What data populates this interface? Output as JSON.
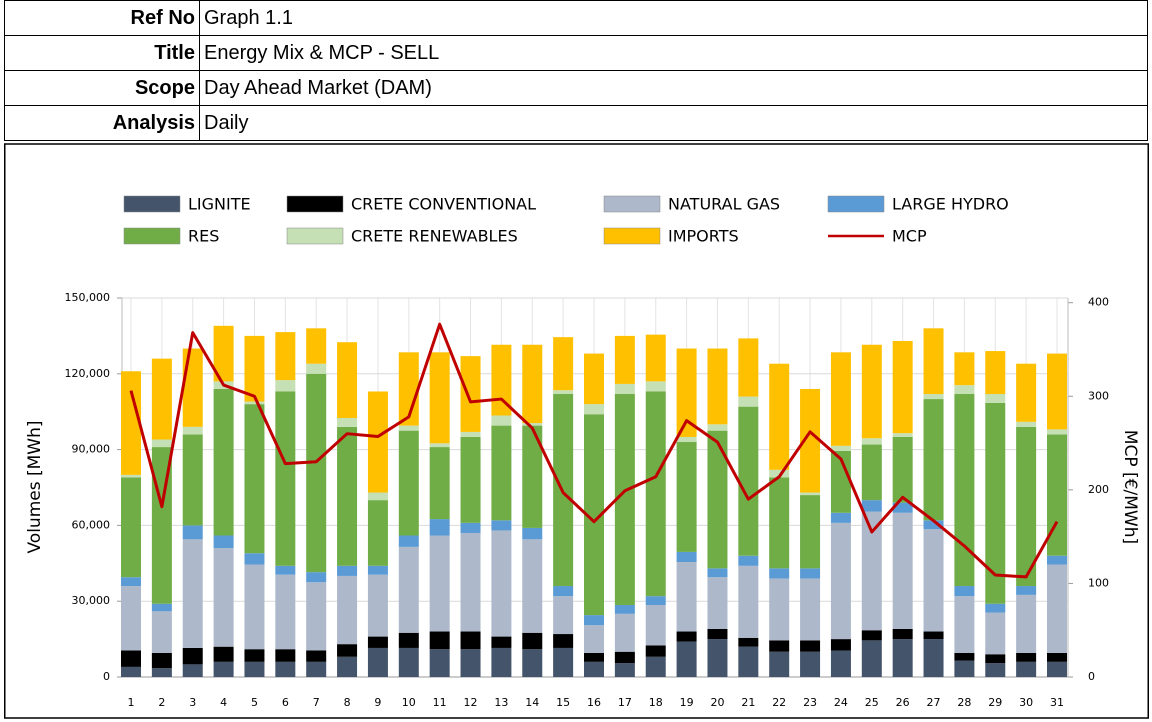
{
  "header": {
    "rows": [
      {
        "label": "Ref No",
        "value": "Graph 1.1"
      },
      {
        "label": "Title",
        "value": "Energy Mix & MCP - SELL"
      },
      {
        "label": "Scope",
        "value": "Day Ahead Market (DAM)"
      },
      {
        "label": "Analysis",
        "value": "Daily"
      }
    ]
  },
  "chart_data": {
    "type": "bar",
    "stacked": true,
    "grid": true,
    "legend": "top",
    "y_label": "Volumes [MWh]",
    "y2_label": "MCP [€/MWh]",
    "categories": [
      "1",
      "2",
      "3",
      "4",
      "5",
      "6",
      "7",
      "8",
      "9",
      "10",
      "11",
      "12",
      "13",
      "14",
      "15",
      "16",
      "17",
      "18",
      "19",
      "20",
      "21",
      "22",
      "23",
      "24",
      "25",
      "26",
      "27",
      "28",
      "29",
      "30",
      "31"
    ],
    "ylim": [
      0,
      150000
    ],
    "yticks": [
      0,
      {
        "value": 30000,
        "label": "30,000"
      },
      {
        "value": 60000,
        "label": "60,000"
      },
      {
        "value": 90000,
        "label": "90,000"
      },
      {
        "value": 120000,
        "label": "120,000"
      },
      {
        "value": 150000,
        "label": "150,000"
      }
    ],
    "y2lim": [
      0,
      405
    ],
    "y2ticks": [
      0,
      100,
      200,
      300,
      400
    ],
    "series": [
      {
        "name": "LIGNITE",
        "color": "#44546a",
        "values": [
          4000,
          3500,
          5000,
          6000,
          6000,
          6000,
          6000,
          8000,
          11500,
          11500,
          11000,
          11000,
          11500,
          11000,
          11500,
          6000,
          5500,
          8000,
          14000,
          15000,
          12000,
          10000,
          10000,
          10500,
          14500,
          15000,
          15000,
          6500,
          5500,
          6000,
          6000
        ]
      },
      {
        "name": "CRETE CONVENTIONAL",
        "color": "#000000",
        "values": [
          6500,
          6000,
          6500,
          6000,
          5000,
          5000,
          4500,
          5000,
          4500,
          6000,
          7000,
          7000,
          4500,
          6500,
          5500,
          3500,
          4500,
          4500,
          4000,
          4000,
          3500,
          4500,
          4500,
          4500,
          4000,
          4000,
          3000,
          3000,
          3500,
          3500,
          3500
        ]
      },
      {
        "name": "NATURAL GAS",
        "color": "#adb9ca",
        "values": [
          25500,
          16500,
          43000,
          39000,
          33500,
          29500,
          27000,
          27000,
          24500,
          34000,
          38000,
          39000,
          42000,
          37000,
          15000,
          11000,
          15000,
          16000,
          27500,
          20500,
          28500,
          24500,
          24500,
          46000,
          47000,
          46000,
          40500,
          22500,
          16500,
          23000,
          35000
        ]
      },
      {
        "name": "LARGE HYDRO",
        "color": "#5b9bd5",
        "values": [
          3500,
          3000,
          5500,
          5000,
          4500,
          3500,
          4000,
          4000,
          3500,
          4500,
          6500,
          4000,
          4000,
          4500,
          4000,
          4000,
          3500,
          3500,
          4000,
          3500,
          4000,
          4000,
          4000,
          4000,
          4500,
          4000,
          3500,
          4000,
          3500,
          3500,
          3500
        ]
      },
      {
        "name": "RES",
        "color": "#70ad47",
        "values": [
          39500,
          62000,
          36000,
          58000,
          59000,
          69000,
          78500,
          55000,
          26000,
          41500,
          28500,
          34000,
          37500,
          40500,
          76000,
          79500,
          83500,
          81000,
          43500,
          54500,
          59000,
          36000,
          29000,
          24500,
          22000,
          26000,
          48000,
          76000,
          79500,
          63000,
          48000
        ]
      },
      {
        "name": "CRETE RENEWABLES",
        "color": "#c5e0b4",
        "values": [
          1000,
          3000,
          3000,
          3000,
          1000,
          4500,
          4000,
          3500,
          3000,
          2000,
          1500,
          2000,
          4000,
          1000,
          1500,
          4000,
          4000,
          4000,
          2000,
          2500,
          4000,
          3000,
          1000,
          2000,
          2500,
          1500,
          2000,
          3500,
          3500,
          2000,
          2000
        ]
      },
      {
        "name": "IMPORTS",
        "color": "#ffc000",
        "values": [
          41000,
          32000,
          31000,
          22000,
          26000,
          19000,
          14000,
          30000,
          40000,
          29000,
          36000,
          30000,
          28000,
          31000,
          21000,
          20000,
          19000,
          18500,
          35000,
          30000,
          23000,
          42000,
          41000,
          37000,
          37000,
          36500,
          26000,
          13000,
          17000,
          23000,
          30000
        ]
      },
      {
        "name": "MCP",
        "color": "#c00000",
        "type": "line",
        "axis": "y2",
        "values": [
          306,
          182,
          368,
          312,
          300,
          228,
          230,
          260,
          257,
          278,
          377,
          294,
          297,
          266,
          197,
          166,
          199,
          214,
          274,
          251,
          190,
          214,
          262,
          233,
          155,
          192,
          167,
          140,
          109,
          107,
          166
        ]
      }
    ]
  }
}
